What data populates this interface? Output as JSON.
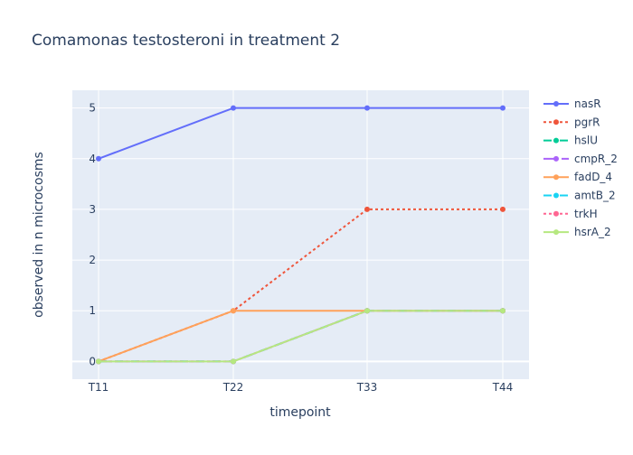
{
  "chart_data": {
    "type": "line",
    "title": "Comamonas testosteroni in treatment 2",
    "xlabel": "timepoint",
    "ylabel": "observed in n microcosms",
    "categories": [
      "T11",
      "T22",
      "T33",
      "T44"
    ],
    "ylim": [
      -0.35,
      5.35
    ],
    "yticks": [
      0,
      1,
      2,
      3,
      4,
      5
    ],
    "grid": true,
    "legend_position": "right",
    "colors": {
      "plot_bg": "#e5ecf6",
      "grid": "#ffffff",
      "text": "#2a3f5f"
    },
    "series": [
      {
        "name": "nasR",
        "values": [
          4,
          5,
          5,
          5
        ],
        "color": "#636efa",
        "dash": "solid"
      },
      {
        "name": "pgrR",
        "values": [
          0,
          1,
          3,
          3
        ],
        "color": "#ef553b",
        "dash": "dot"
      },
      {
        "name": "hslU",
        "values": [
          0,
          0,
          1,
          1
        ],
        "color": "#00cc96",
        "dash": "dash"
      },
      {
        "name": "cmpR_2",
        "values": [
          0,
          0,
          1,
          1
        ],
        "color": "#ab63fa",
        "dash": "longdash"
      },
      {
        "name": "fadD_4",
        "values": [
          0,
          1,
          1,
          1
        ],
        "color": "#ffa15a",
        "dash": "solid"
      },
      {
        "name": "amtB_2",
        "values": [
          0,
          0,
          1,
          1
        ],
        "color": "#19d3f3",
        "dash": "dash"
      },
      {
        "name": "trkH",
        "values": [
          0,
          0,
          1,
          1
        ],
        "color": "#ff6692",
        "dash": "dot"
      },
      {
        "name": "hsrA_2",
        "values": [
          0,
          0,
          1,
          1
        ],
        "color": "#b6e880",
        "dash": "solid"
      }
    ]
  }
}
